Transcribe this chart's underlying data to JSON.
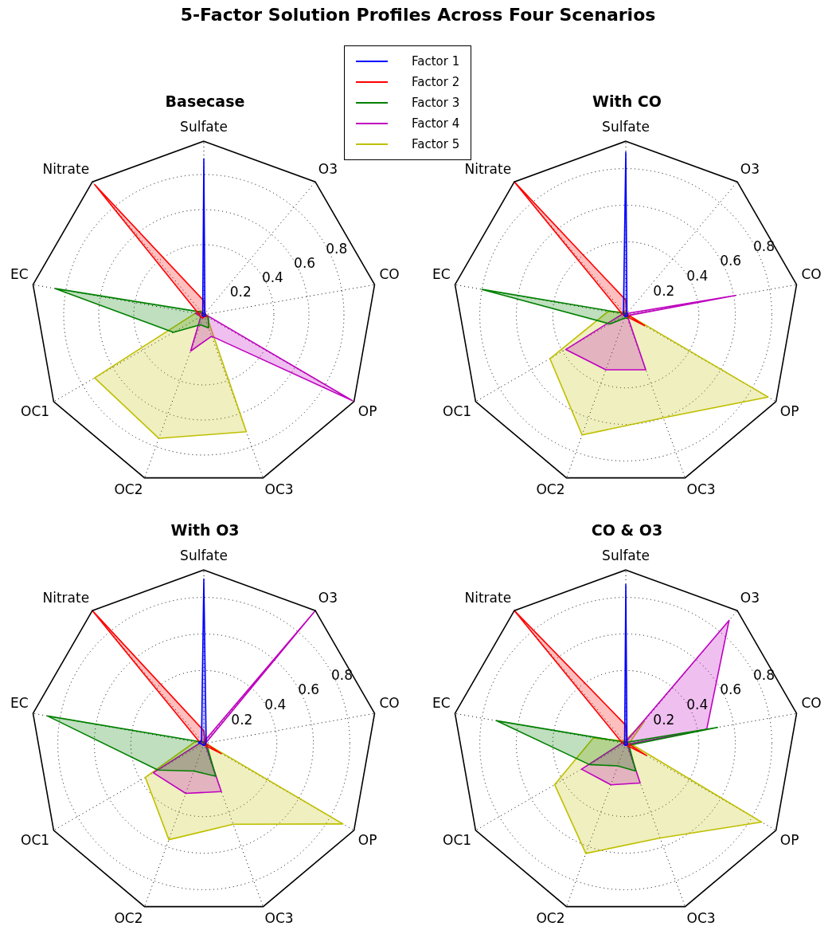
{
  "chart_data": [
    {
      "type": "radar",
      "title": "Basecase",
      "annotations": [
        "5-Factor Solution Profiles Across Four Scenarios"
      ],
      "categories": [
        "Sulfate",
        "O3",
        "CO",
        "OP",
        "OC3",
        "OC2",
        "OC1",
        "EC",
        "Nitrate"
      ],
      "ylim": [
        0,
        0.99
      ],
      "yticks": [
        0.2,
        0.4,
        0.6,
        0.8
      ],
      "grid": true,
      "legend": "top right",
      "series": [
        {
          "name": "Factor 1",
          "color": "#0000ff",
          "values": [
            0.89,
            0.01,
            0.01,
            0.01,
            0.01,
            0.01,
            0.01,
            0.01,
            0.01
          ]
        },
        {
          "name": "Factor 2",
          "color": "#ff0000",
          "values": [
            0.08,
            0.01,
            0.01,
            0.02,
            0.01,
            0.02,
            0.02,
            0.03,
            0.97
          ]
        },
        {
          "name": "Factor 3",
          "color": "#008000",
          "values": [
            0.01,
            0.01,
            0.01,
            0.03,
            0.08,
            0.06,
            0.2,
            0.86,
            0.02
          ]
        },
        {
          "name": "Factor 4",
          "color": "#bf00bf",
          "values": [
            0.01,
            0.01,
            0.01,
            0.98,
            0.13,
            0.22,
            0.02,
            0.05,
            0.01
          ]
        },
        {
          "name": "Factor 5",
          "color": "#bfbf00",
          "values": [
            0.01,
            0.01,
            0.01,
            0.02,
            0.71,
            0.75,
            0.72,
            0.05,
            0.03
          ]
        }
      ]
    },
    {
      "type": "radar",
      "title": "With CO",
      "categories": [
        "Sulfate",
        "O3",
        "CO",
        "OP",
        "OC3",
        "OC2",
        "OC1",
        "EC",
        "Nitrate"
      ],
      "ylim": [
        0,
        0.95
      ],
      "yticks": [
        0.2,
        0.4,
        0.6,
        0.8
      ],
      "grid": true,
      "series": [
        {
          "color": "#0000ff",
          "values": [
            0.89,
            0.01,
            0.01,
            0.01,
            0.01,
            0.01,
            0.01,
            0.01,
            0.02
          ]
        },
        {
          "color": "#ff0000",
          "values": [
            0.08,
            0.01,
            0.01,
            0.12,
            0.01,
            0.01,
            0.01,
            0.02,
            0.95
          ]
        },
        {
          "color": "#008000",
          "values": [
            0.01,
            0.01,
            0.01,
            0.02,
            0.02,
            0.02,
            0.1,
            0.8,
            0.01
          ]
        },
        {
          "color": "#bf00bf",
          "values": [
            0.01,
            0.01,
            0.61,
            0.01,
            0.32,
            0.32,
            0.38,
            0.02,
            0.01
          ]
        },
        {
          "color": "#bfbf00",
          "values": [
            0.02,
            0.01,
            0.01,
            0.9,
            0.6,
            0.7,
            0.48,
            0.1,
            0.02
          ]
        }
      ]
    },
    {
      "type": "radar",
      "title": "With O3",
      "categories": [
        "Sulfate",
        "O3",
        "CO",
        "OP",
        "OC3",
        "OC2",
        "OC1",
        "EC",
        "Nitrate"
      ],
      "ylim": [
        0,
        0.95
      ],
      "yticks": [
        0.2,
        0.4,
        0.6,
        0.8
      ],
      "grid": true,
      "series": [
        {
          "color": "#0000ff",
          "values": [
            0.9,
            0.02,
            0.01,
            0.01,
            0.01,
            0.01,
            0.01,
            0.03,
            0.02
          ]
        },
        {
          "color": "#ff0000",
          "values": [
            0.07,
            0.01,
            0.01,
            0.11,
            0.01,
            0.01,
            0.01,
            0.02,
            0.95
          ]
        },
        {
          "color": "#008000",
          "values": [
            0.01,
            0.01,
            0.01,
            0.02,
            0.19,
            0.16,
            0.29,
            0.87,
            0.01
          ]
        },
        {
          "color": "#bf00bf",
          "values": [
            0.01,
            0.95,
            0.01,
            0.01,
            0.28,
            0.29,
            0.32,
            0.02,
            0.01
          ]
        },
        {
          "color": "#bfbf00",
          "values": [
            0.01,
            0.01,
            0.01,
            0.88,
            0.47,
            0.56,
            0.37,
            0.05,
            0.02
          ]
        }
      ]
    },
    {
      "type": "radar",
      "title": "CO & O3",
      "categories": [
        "Sulfate",
        "O3",
        "CO",
        "OP",
        "OC3",
        "OC2",
        "OC1",
        "EC",
        "Nitrate"
      ],
      "ylim": [
        0,
        0.95
      ],
      "yticks": [
        0.2,
        0.4,
        0.6,
        0.8
      ],
      "grid": true,
      "series": [
        {
          "color": "#0000ff",
          "values": [
            0.87,
            0.01,
            0.01,
            0.01,
            0.01,
            0.01,
            0.01,
            0.01,
            0.01
          ]
        },
        {
          "color": "#ff0000",
          "values": [
            0.1,
            0.01,
            0.01,
            0.13,
            0.01,
            0.01,
            0.01,
            0.02,
            0.95
          ]
        },
        {
          "color": "#008000",
          "values": [
            0.01,
            0.01,
            0.51,
            0.02,
            0.16,
            0.13,
            0.23,
            0.72,
            0.01
          ]
        },
        {
          "color": "#bf00bf",
          "values": [
            0.01,
            0.88,
            0.45,
            0.01,
            0.23,
            0.24,
            0.28,
            0.02,
            0.01
          ]
        },
        {
          "color": "#bfbf00",
          "values": [
            0.02,
            0.16,
            0.02,
            0.86,
            0.55,
            0.64,
            0.45,
            0.18,
            0.02
          ]
        }
      ]
    }
  ]
}
